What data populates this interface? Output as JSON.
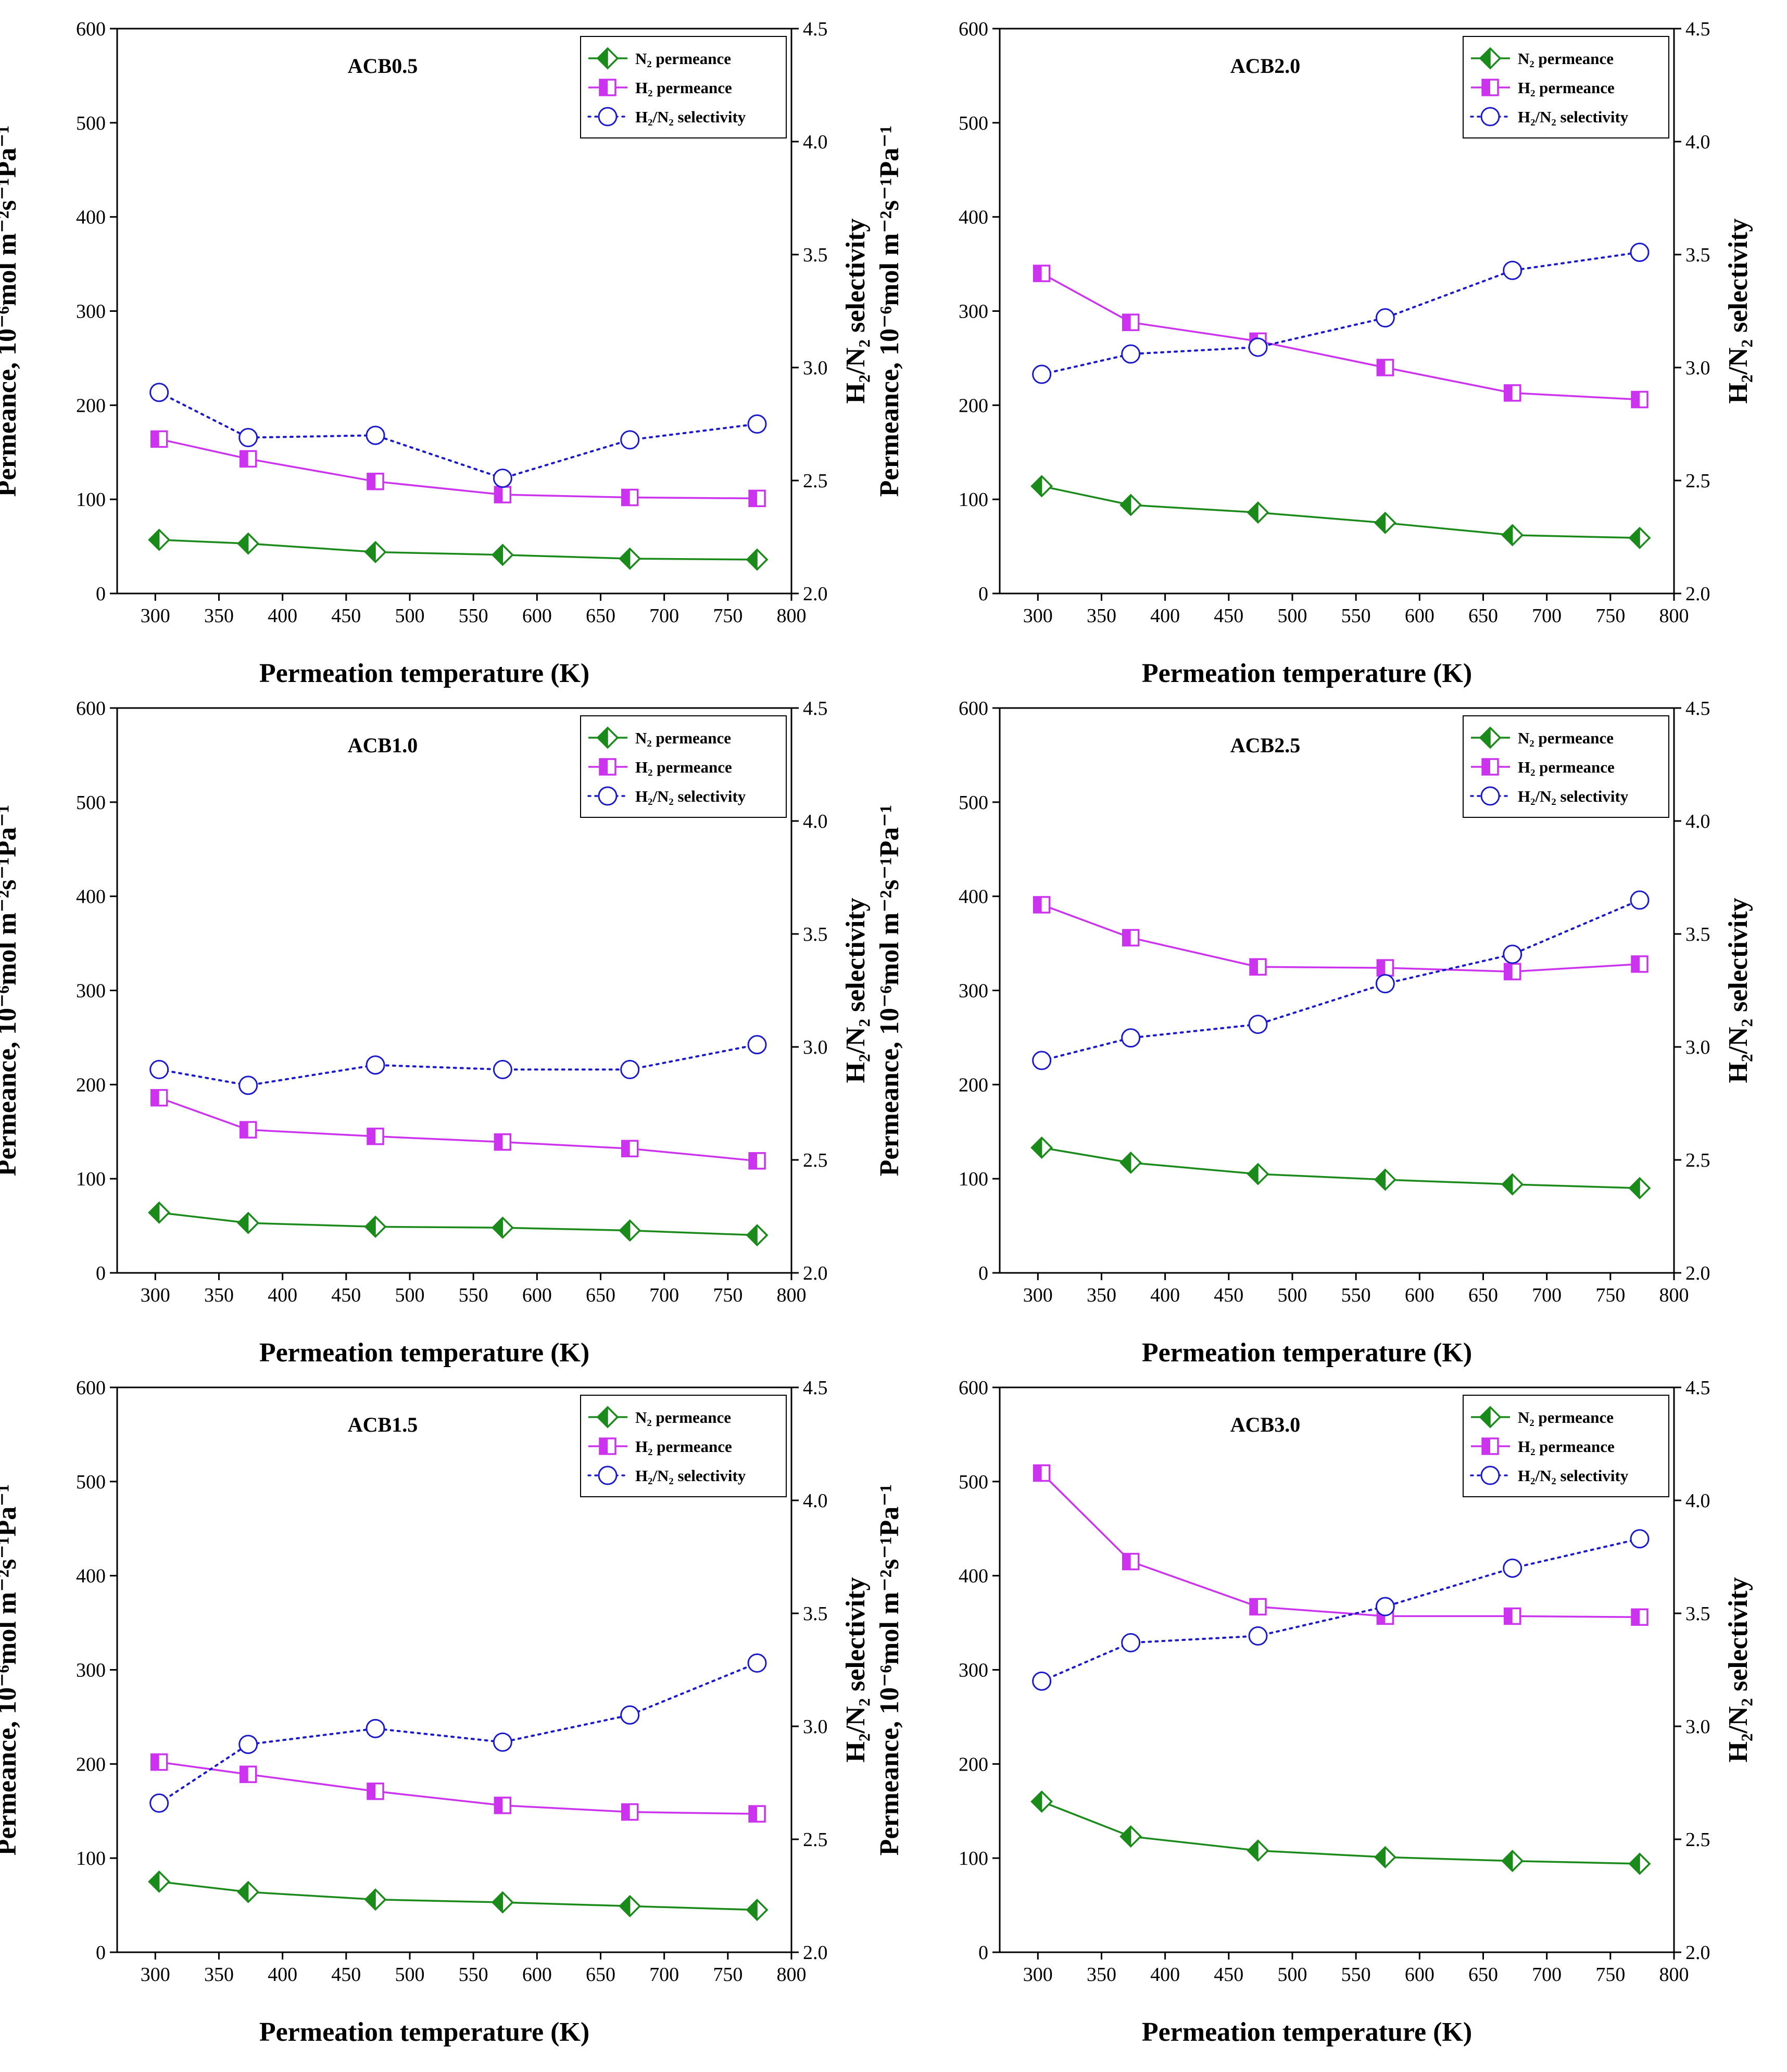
{
  "figure": {
    "xlabel": "Permeation temperature (K)",
    "ylabel_left": "Permeance, 10⁻⁶mol m⁻²s⁻¹Pa⁻¹",
    "ylabel_right": "H₂/N₂ selectivity"
  },
  "legend": {
    "n2": "N₂ permeance",
    "h2": "H₂ permeance",
    "sel": "H₂/N₂ selectivity"
  },
  "colors": {
    "n2": "#1a8a1a",
    "h2": "#cc33ee",
    "sel": "#1a1acc"
  },
  "chart_data": [
    {
      "type": "line",
      "title": "ACB0.5",
      "x": [
        303,
        373,
        473,
        573,
        673,
        773
      ],
      "xlim": [
        270,
        800
      ],
      "xticks": [
        300,
        350,
        400,
        450,
        500,
        550,
        600,
        650,
        700,
        750,
        800
      ],
      "ylim": [
        0,
        600
      ],
      "yticks": [
        0,
        100,
        200,
        300,
        400,
        500,
        600
      ],
      "y2lim": [
        2.0,
        4.5
      ],
      "y2ticks": [
        "2.0",
        "2.5",
        "3.0",
        "3.5",
        "4.0",
        "4.5"
      ],
      "series": [
        {
          "name": "N₂ permeance",
          "axis": "left",
          "values": [
            57,
            53,
            44,
            41,
            37,
            36
          ]
        },
        {
          "name": "H₂ permeance",
          "axis": "left",
          "values": [
            164,
            143,
            119,
            105,
            102,
            101
          ]
        },
        {
          "name": "H₂/N₂ selectivity",
          "axis": "right",
          "values": [
            2.89,
            2.69,
            2.7,
            2.51,
            2.68,
            2.75
          ]
        }
      ]
    },
    {
      "type": "line",
      "title": "ACB2.0",
      "x": [
        303,
        373,
        473,
        573,
        673,
        773
      ],
      "xlim": [
        270,
        800
      ],
      "xticks": [
        300,
        350,
        400,
        450,
        500,
        550,
        600,
        650,
        700,
        750,
        800
      ],
      "ylim": [
        0,
        600
      ],
      "yticks": [
        0,
        100,
        200,
        300,
        400,
        500,
        600
      ],
      "y2lim": [
        2.0,
        4.5
      ],
      "y2ticks": [
        "2.0",
        "2.5",
        "3.0",
        "3.5",
        "4.0",
        "4.5"
      ],
      "series": [
        {
          "name": "N₂ permeance",
          "axis": "left",
          "values": [
            114,
            94,
            86,
            75,
            62,
            59
          ]
        },
        {
          "name": "H₂ permeance",
          "axis": "left",
          "values": [
            340,
            288,
            268,
            240,
            213,
            206
          ]
        },
        {
          "name": "H₂/N₂ selectivity",
          "axis": "right",
          "values": [
            2.97,
            3.06,
            3.09,
            3.22,
            3.43,
            3.51
          ]
        }
      ]
    },
    {
      "type": "line",
      "title": "ACB1.0",
      "x": [
        303,
        373,
        473,
        573,
        673,
        773
      ],
      "xlim": [
        270,
        800
      ],
      "xticks": [
        300,
        350,
        400,
        450,
        500,
        550,
        600,
        650,
        700,
        750,
        800
      ],
      "ylim": [
        0,
        600
      ],
      "yticks": [
        0,
        100,
        200,
        300,
        400,
        500,
        600
      ],
      "y2lim": [
        2.0,
        4.5
      ],
      "y2ticks": [
        "2.0",
        "2.5",
        "3.0",
        "3.5",
        "4.0",
        "4.5"
      ],
      "series": [
        {
          "name": "N₂ permeance",
          "axis": "left",
          "values": [
            64,
            53,
            49,
            48,
            45,
            40
          ]
        },
        {
          "name": "H₂ permeance",
          "axis": "left",
          "values": [
            186,
            152,
            145,
            139,
            132,
            119
          ]
        },
        {
          "name": "H₂/N₂ selectivity",
          "axis": "right",
          "values": [
            2.9,
            2.83,
            2.92,
            2.9,
            2.9,
            3.01
          ]
        }
      ]
    },
    {
      "type": "line",
      "title": "ACB2.5",
      "x": [
        303,
        373,
        473,
        573,
        673,
        773
      ],
      "xlim": [
        270,
        800
      ],
      "xticks": [
        300,
        350,
        400,
        450,
        500,
        550,
        600,
        650,
        700,
        750,
        800
      ],
      "ylim": [
        0,
        600
      ],
      "yticks": [
        0,
        100,
        200,
        300,
        400,
        500,
        600
      ],
      "y2lim": [
        2.0,
        4.5
      ],
      "y2ticks": [
        "2.0",
        "2.5",
        "3.0",
        "3.5",
        "4.0",
        "4.5"
      ],
      "series": [
        {
          "name": "N₂ permeance",
          "axis": "left",
          "values": [
            133,
            117,
            105,
            99,
            94,
            90
          ]
        },
        {
          "name": "H₂ permeance",
          "axis": "left",
          "values": [
            391,
            356,
            325,
            324,
            320,
            328
          ]
        },
        {
          "name": "H₂/N₂ selectivity",
          "axis": "right",
          "values": [
            2.94,
            3.04,
            3.1,
            3.28,
            3.41,
            3.65
          ]
        }
      ]
    },
    {
      "type": "line",
      "title": "ACB1.5",
      "x": [
        303,
        373,
        473,
        573,
        673,
        773
      ],
      "xlim": [
        270,
        800
      ],
      "xticks": [
        300,
        350,
        400,
        450,
        500,
        550,
        600,
        650,
        700,
        750,
        800
      ],
      "ylim": [
        0,
        600
      ],
      "yticks": [
        0,
        100,
        200,
        300,
        400,
        500,
        600
      ],
      "y2lim": [
        2.0,
        4.5
      ],
      "y2ticks": [
        "2.0",
        "2.5",
        "3.0",
        "3.5",
        "4.0",
        "4.5"
      ],
      "series": [
        {
          "name": "N₂ permeance",
          "axis": "left",
          "values": [
            75,
            64,
            56,
            53,
            49,
            45
          ]
        },
        {
          "name": "H₂ permeance",
          "axis": "left",
          "values": [
            202,
            189,
            171,
            156,
            149,
            147
          ]
        },
        {
          "name": "H₂/N₂ selectivity",
          "axis": "right",
          "values": [
            2.66,
            2.92,
            2.99,
            2.93,
            3.05,
            3.28
          ]
        }
      ]
    },
    {
      "type": "line",
      "title": "ACB3.0",
      "x": [
        303,
        373,
        473,
        573,
        673,
        773
      ],
      "xlim": [
        270,
        800
      ],
      "xticks": [
        300,
        350,
        400,
        450,
        500,
        550,
        600,
        650,
        700,
        750,
        800
      ],
      "ylim": [
        0,
        600
      ],
      "yticks": [
        0,
        100,
        200,
        300,
        400,
        500,
        600
      ],
      "y2lim": [
        2.0,
        4.5
      ],
      "y2ticks": [
        "2.0",
        "2.5",
        "3.0",
        "3.5",
        "4.0",
        "4.5"
      ],
      "series": [
        {
          "name": "N₂ permeance",
          "axis": "left",
          "values": [
            160,
            123,
            108,
            101,
            97,
            94
          ]
        },
        {
          "name": "H₂ permeance",
          "axis": "left",
          "values": [
            509,
            415,
            367,
            357,
            357,
            356
          ]
        },
        {
          "name": "H₂/N₂ selectivity",
          "axis": "right",
          "values": [
            3.2,
            3.37,
            3.4,
            3.53,
            3.7,
            3.83
          ]
        }
      ]
    }
  ]
}
